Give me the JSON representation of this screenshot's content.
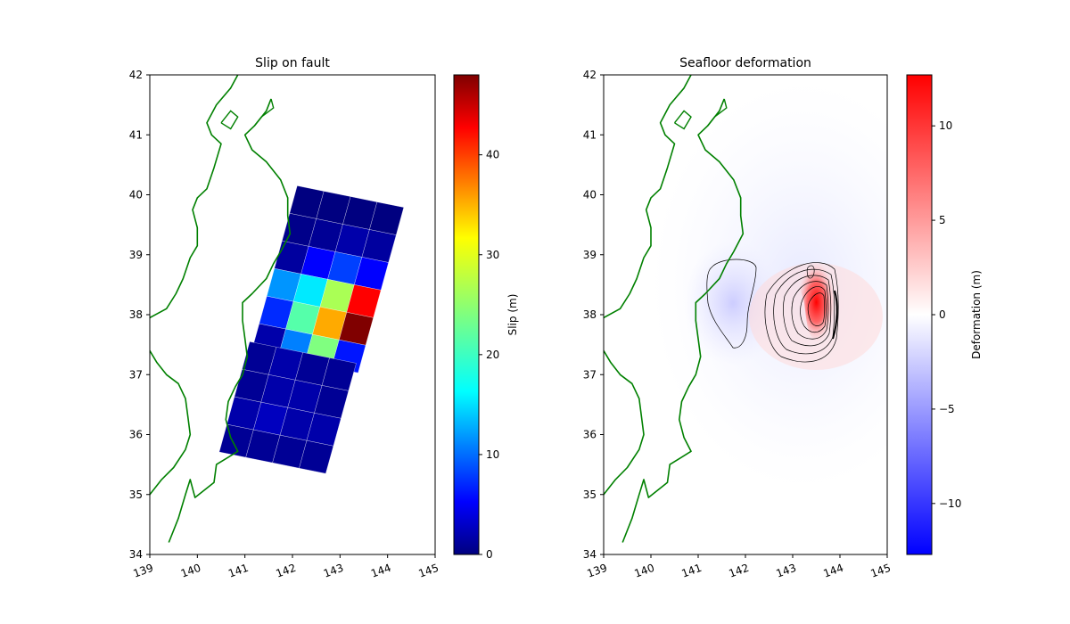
{
  "chart_data": [
    {
      "type": "heatmap",
      "title": "Slip on fault",
      "xlabel": "",
      "ylabel": "",
      "xlim": [
        139,
        145
      ],
      "ylim": [
        34,
        42
      ],
      "x_ticks": [
        "139",
        "140",
        "141",
        "142",
        "143",
        "144",
        "145"
      ],
      "y_ticks": [
        "34",
        "35",
        "36",
        "37",
        "38",
        "39",
        "40",
        "41",
        "42"
      ],
      "colorbar": {
        "label": "Slip (m)",
        "range": [
          0,
          48
        ],
        "ticks": [
          "0",
          "10",
          "20",
          "30",
          "40"
        ],
        "colormap": "jet"
      },
      "coastline_color": "#008000",
      "subfaults_north": {
        "origin_lon": 142.1,
        "origin_lat": 40.15,
        "strike_step": [
          0.56,
          -0.09
        ],
        "dip_step": [
          -0.16,
          -0.46
        ],
        "slip_rows": [
          [
            0,
            0,
            0,
            0
          ],
          [
            0.5,
            1,
            2,
            1.5
          ],
          [
            1.5,
            6,
            9,
            6
          ],
          [
            13,
            17,
            26,
            42
          ],
          [
            8,
            22,
            34,
            48
          ],
          [
            2,
            12,
            24,
            7
          ]
        ]
      },
      "subfaults_south": {
        "origin_lon": 141.1,
        "origin_lat": 37.55,
        "strike_step": [
          0.56,
          -0.09
        ],
        "dip_step": [
          -0.16,
          -0.46
        ],
        "slip_rows": [
          [
            1,
            2,
            1,
            1
          ],
          [
            1,
            2,
            2,
            1
          ],
          [
            2,
            3,
            2,
            2
          ],
          [
            1,
            1,
            1,
            1
          ]
        ]
      }
    },
    {
      "type": "heatmap",
      "title": "Seafloor deformation",
      "xlabel": "",
      "ylabel": "",
      "xlim": [
        139,
        145
      ],
      "ylim": [
        34,
        42
      ],
      "x_ticks": [
        "139",
        "140",
        "141",
        "142",
        "143",
        "144",
        "145"
      ],
      "y_ticks": [
        "34",
        "35",
        "36",
        "37",
        "38",
        "39",
        "40",
        "41",
        "42"
      ],
      "colorbar": {
        "label": "Deformation (m)",
        "range": [
          -12.7,
          12.7
        ],
        "ticks": [
          "−10",
          "−5",
          "0",
          "5",
          "10"
        ],
        "colormap": "bwr"
      },
      "coastline_color": "#008000",
      "uplift_peak_m": 12.5,
      "uplift_center": [
        143.5,
        37.95
      ],
      "subsidence_peak_m": -1.5,
      "subsidence_center": [
        141.7,
        38.2
      ]
    }
  ]
}
